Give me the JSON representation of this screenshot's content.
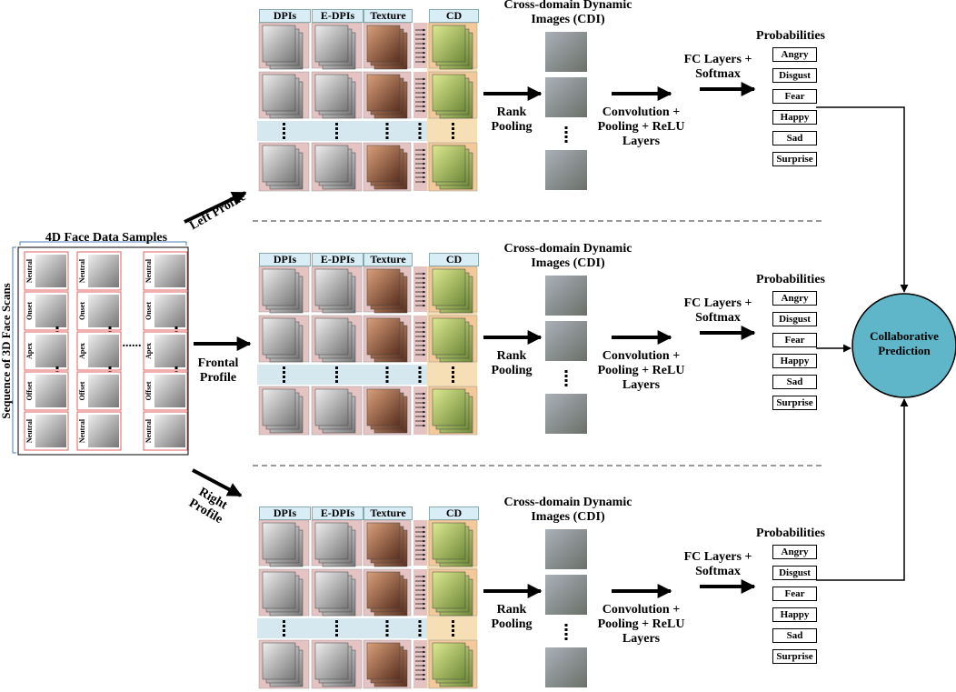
{
  "samples": {
    "title": "4D Face Data Samples",
    "axis_label": "Sequence of 3D Face Scans",
    "phases": [
      "Neutral",
      "Onset",
      "Apex",
      "Offset",
      "Neutral"
    ],
    "ellipsis": "......"
  },
  "branches": [
    {
      "profile": "Left Profile",
      "columns": [
        "DPIs",
        "E-DPIs",
        "Texture",
        "CD"
      ],
      "cdi_title": "Cross-domain Dynamic Images (CDI)",
      "rank_pooling": "Rank Pooling",
      "conv": "Convolution + Pooling + ReLU Layers",
      "fc": "FC Layers + Softmax",
      "probabilities_title": "Probabilities",
      "classes": [
        "Angry",
        "Disgust",
        "Fear",
        "Happy",
        "Sad",
        "Surprise"
      ]
    },
    {
      "profile": "Frontal Profile",
      "columns": [
        "DPIs",
        "E-DPIs",
        "Texture",
        "CD"
      ],
      "cdi_title": "Cross-domain Dynamic Images (CDI)",
      "rank_pooling": "Rank Pooling",
      "conv": "Convolution + Pooling + ReLU Layers",
      "fc": "FC Layers + Softmax",
      "probabilities_title": "Probabilities",
      "classes": [
        "Angry",
        "Disgust",
        "Fear",
        "Happy",
        "Sad",
        "Surprise"
      ]
    },
    {
      "profile": "Right Profile",
      "columns": [
        "DPIs",
        "E-DPIs",
        "Texture",
        "CD"
      ],
      "cdi_title": "Cross-domain Dynamic Images (CDI)",
      "rank_pooling": "Rank Pooling",
      "conv": "Convolution + Pooling + ReLU Layers",
      "fc": "FC Layers + Softmax",
      "probabilities_title": "Probabilities",
      "classes": [
        "Angry",
        "Disgust",
        "Fear",
        "Happy",
        "Sad",
        "Surprise"
      ]
    }
  ],
  "fusion": "Collaborative Prediction"
}
